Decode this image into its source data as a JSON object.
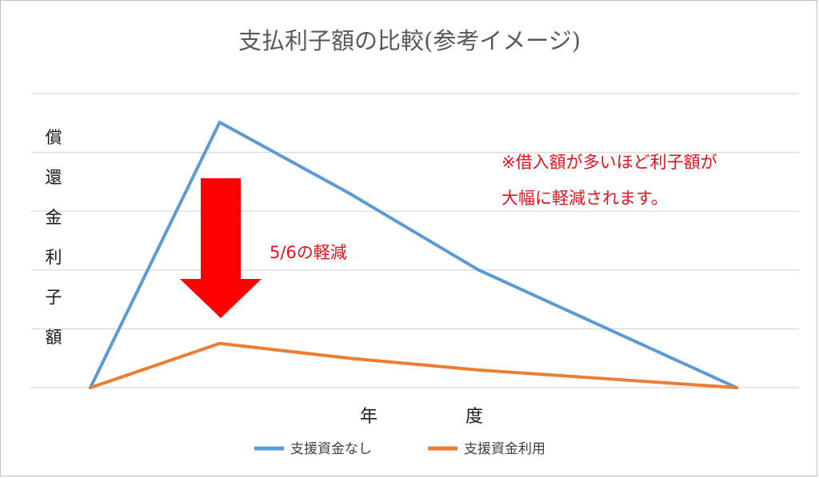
{
  "chart_data": {
    "type": "line",
    "title": "支払利子額の比較(参考イメージ)",
    "ylabel": "償還金利子額",
    "xlabel": "年　　　　　度",
    "categories": [
      "",
      "",
      "",
      "",
      "",
      ""
    ],
    "ylim": [
      0,
      4.5
    ],
    "grid": true,
    "legend_position": "bottom",
    "series": [
      {
        "name": "支援資金なし",
        "color": "#5b9bd5",
        "values": [
          0,
          4.5,
          3.3,
          2.0,
          1.0,
          0
        ]
      },
      {
        "name": "支援資金利用",
        "color": "#ed7d31",
        "values": [
          0,
          0.75,
          0.5,
          0.3,
          0.15,
          0
        ]
      }
    ],
    "annotations": [
      {
        "text": "※借入額が多いほど利子額が",
        "color": "#e8101b"
      },
      {
        "text": "大幅に軽減されます。",
        "color": "#e8101b"
      },
      {
        "text": "5/6の軽減",
        "color": "#e8101b"
      }
    ],
    "arrow_color": "#ff0000"
  }
}
